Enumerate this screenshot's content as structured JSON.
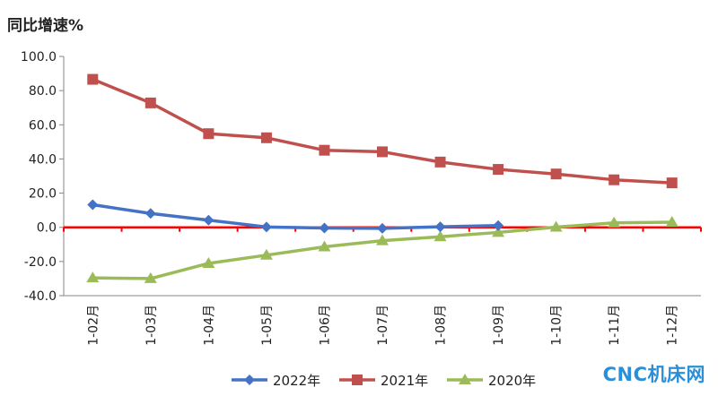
{
  "chart_data": {
    "type": "line",
    "ylabel": "同比增速%",
    "ylim": [
      -40,
      100
    ],
    "yticks": [
      "100.0",
      "80.0",
      "60.0",
      "40.0",
      "20.0",
      "0.0",
      "-20.0",
      "-40.0"
    ],
    "categories": [
      "1-02月",
      "1-03月",
      "1-04月",
      "1-05月",
      "1-06月",
      "1-07月",
      "1-08月",
      "1-09月",
      "1-10月",
      "1-11月",
      "1-12月"
    ],
    "zero_line_color": "#ff0000",
    "legend_position": "bottom",
    "series": [
      {
        "name": "2022年",
        "color": "#4472c4",
        "marker": "diamond",
        "values": [
          13.2,
          8.1,
          4.2,
          0.2,
          -0.4,
          -0.6,
          0.3,
          1.0,
          null,
          null,
          null
        ]
      },
      {
        "name": "2021年",
        "color": "#c0504d",
        "marker": "square",
        "values": [
          86.6,
          72.8,
          54.8,
          52.4,
          45.1,
          44.2,
          38.2,
          33.9,
          31.2,
          27.8,
          26.0
        ]
      },
      {
        "name": "2020年",
        "color": "#9bbb59",
        "marker": "triangle",
        "values": [
          -29.6,
          -30.0,
          -21.1,
          -16.3,
          -11.4,
          -7.8,
          -5.5,
          -3.0,
          0.1,
          2.6,
          3.0
        ]
      }
    ]
  },
  "watermark": "CNC机床网"
}
